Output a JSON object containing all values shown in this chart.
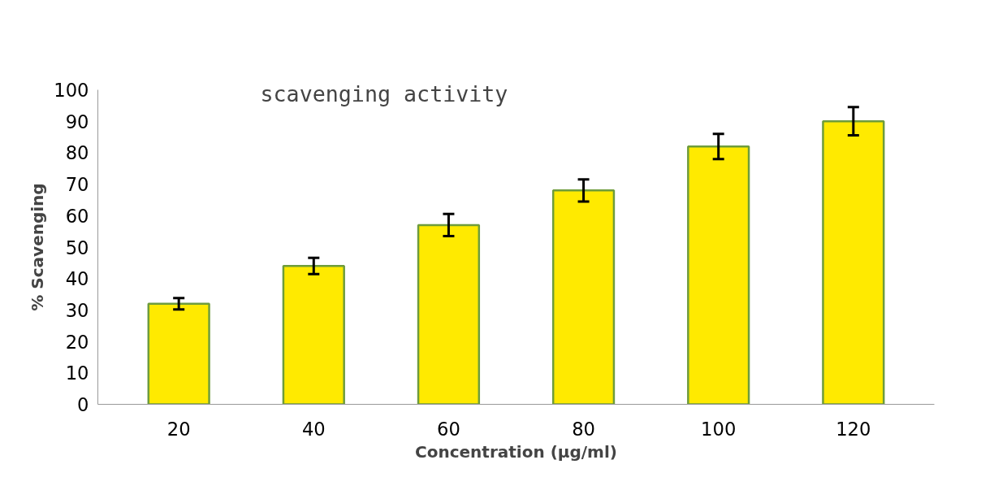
{
  "chart_data": {
    "type": "bar",
    "title": "scavenging activity",
    "xlabel": "Concentration (µg/ml)",
    "ylabel": "% Scavenging",
    "categories": [
      "20",
      "40",
      "60",
      "80",
      "100",
      "120"
    ],
    "values": [
      32,
      44,
      57,
      68,
      82,
      90
    ],
    "errors": [
      1.8,
      2.6,
      3.5,
      3.5,
      4,
      4.5
    ],
    "color": "#ffea00",
    "ylim": [
      0,
      100
    ],
    "yticks": [
      0,
      10,
      20,
      30,
      40,
      50,
      60,
      70,
      80,
      90,
      100
    ],
    "grid": false
  }
}
